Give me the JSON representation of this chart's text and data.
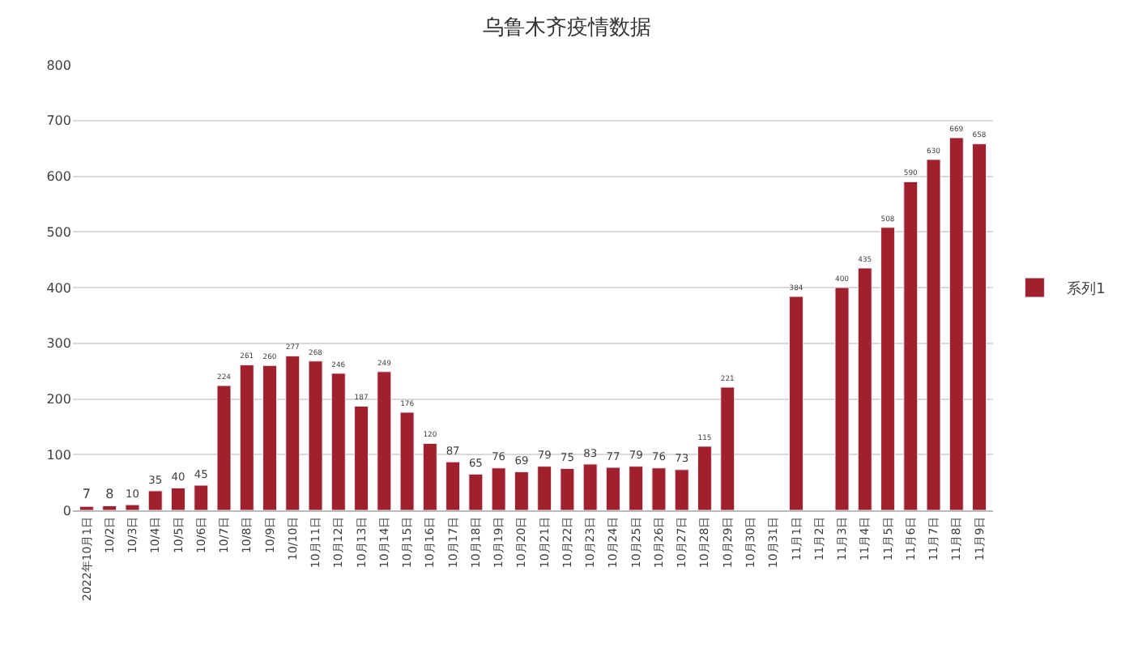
{
  "chart_data": {
    "type": "bar",
    "title": "乌鲁木齐疫情数据",
    "categories": [
      "2022年10月1日",
      "10/2日",
      "10/3日",
      "10/4日",
      "10/5日",
      "10/6日",
      "10/7日",
      "10/8日",
      "10/9日",
      "10/10日",
      "10月11日",
      "10月12日",
      "10月13日",
      "10月14日",
      "10月15日",
      "10月16日",
      "10月17日",
      "10月18日",
      "10月19日",
      "10月20日",
      "10月21日",
      "10月22日",
      "10月23日",
      "10月24日",
      "10月25日",
      "10月26日",
      "10月27日",
      "10月28日",
      "10月29日",
      "10月30日",
      "10月31日",
      "11月1日",
      "11月2日",
      "11月3日",
      "11月4日",
      "11月5日",
      "11月6日",
      "11月7日",
      "11月8日",
      "11月9日"
    ],
    "series": [
      {
        "name": "系列1",
        "color": "#a0202e",
        "values": [
          7,
          8,
          10,
          35,
          40,
          45,
          224,
          261,
          260,
          277,
          268,
          246,
          187,
          249,
          176,
          120,
          87,
          65,
          76,
          69,
          79,
          75,
          83,
          77,
          79,
          76,
          73,
          115,
          221,
          null,
          null,
          384,
          null,
          400,
          435,
          508,
          590,
          630,
          669,
          658
        ]
      }
    ],
    "ylim": [
      0,
      800
    ],
    "yticks": [
      0,
      100,
      200,
      300,
      400,
      500,
      600,
      700,
      800
    ],
    "grid": "y",
    "legend": "right",
    "data_labels": true
  }
}
